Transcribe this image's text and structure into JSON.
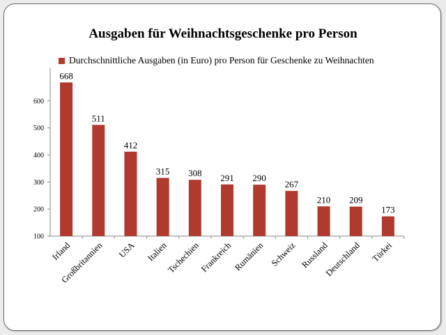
{
  "chart_data": {
    "type": "bar",
    "title": "Ausgaben für Weihnachtsgeschenke pro Person",
    "legend": "Durchschnittliche Ausgaben (in Euro) pro Person für Geschenke zu Weihnachten",
    "legend_position": "top-left",
    "categories": [
      "Irland",
      "Großbritannien",
      "USA",
      "Italien",
      "Tschechien",
      "Frankreich",
      "Rumänien",
      "Schweiz",
      "Russland",
      "Deutschland",
      "Türkei"
    ],
    "values": [
      668,
      511,
      412,
      315,
      308,
      291,
      290,
      267,
      210,
      209,
      173
    ],
    "yticks": [
      100,
      200,
      300,
      400,
      500,
      600
    ],
    "ylim": [
      100,
      700
    ],
    "grid": false,
    "bar_color": "#b03a2e"
  }
}
